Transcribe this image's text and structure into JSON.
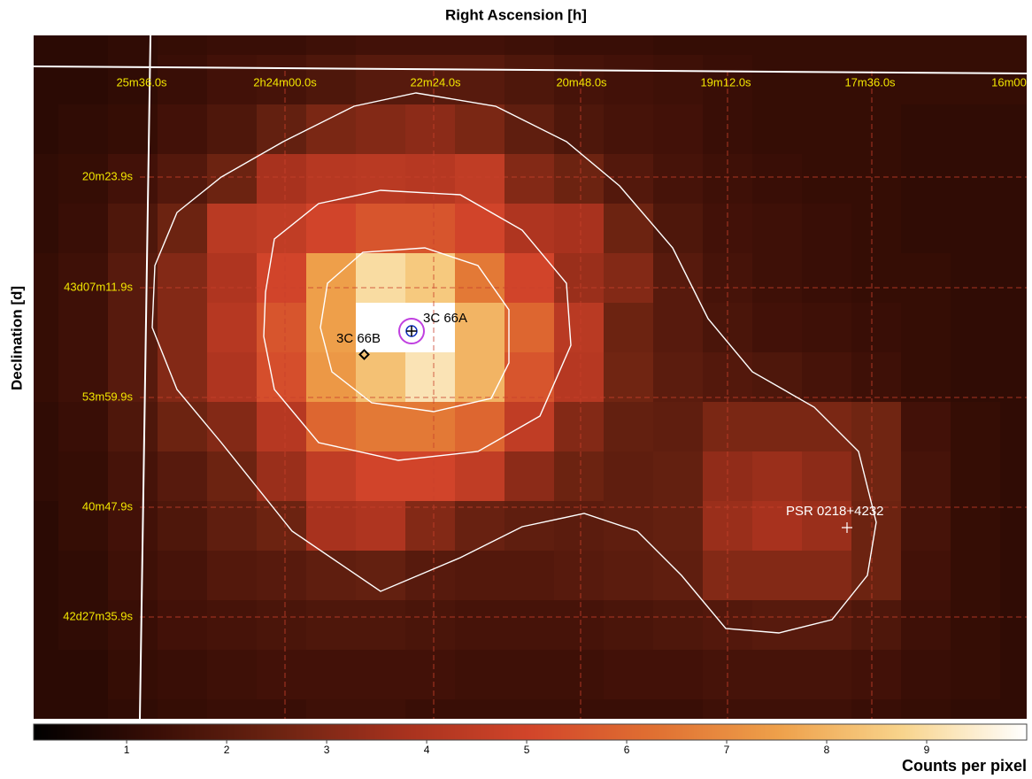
{
  "chart_data": {
    "type": "heatmap",
    "title": "Right Ascension [h]",
    "y_label": "Declination [d]",
    "colorbar_label": "Counts per pixel",
    "ra_labels": [
      "25m36.0s",
      "2h24m00.0s",
      "22m24.0s",
      "20m48.0s",
      "19m12.0s",
      "17m36.0s",
      "16m00"
    ],
    "dec_labels": [
      "20m23.9s",
      "43d07m11.9s",
      "53m59.9s",
      "40m47.9s",
      "42d27m35.9s"
    ],
    "sources": [
      "3C 66A",
      "3C 66B",
      "PSR 0218+4232"
    ],
    "clim": [
      0.07,
      10
    ],
    "cticks": [
      1,
      2,
      3,
      4,
      5,
      6,
      7,
      8,
      9
    ],
    "colormap": [
      "#000000",
      "#3a0e06",
      "#6e2412",
      "#a8321e",
      "#d2452a",
      "#e07032",
      "#eea04a",
      "#f8d48c",
      "#ffffff"
    ],
    "values": [
      [
        1.0,
        1.0,
        1.1,
        1.2,
        1.3,
        1.3,
        1.4,
        1.5,
        1.5,
        1.5,
        1.4,
        1.3,
        1.3,
        1.2,
        1.2,
        1.2,
        1.2,
        1.2,
        1.2,
        1.2,
        1.2
      ],
      [
        1.0,
        1.0,
        1.1,
        1.3,
        1.5,
        1.6,
        1.8,
        2.0,
        2.0,
        2.0,
        1.8,
        1.6,
        1.5,
        1.4,
        1.3,
        1.2,
        1.2,
        1.2,
        1.2,
        1.2,
        1.2
      ],
      [
        1.0,
        1.1,
        1.2,
        1.5,
        1.8,
        2.3,
        2.8,
        3.0,
        3.2,
        2.8,
        2.2,
        1.8,
        1.6,
        1.5,
        1.3,
        1.2,
        1.2,
        1.2,
        1.1,
        1.1,
        1.1
      ],
      [
        1.1,
        1.2,
        1.5,
        1.9,
        2.5,
        3.8,
        4.2,
        4.3,
        4.2,
        4.5,
        3.0,
        2.5,
        1.9,
        1.6,
        1.4,
        1.3,
        1.2,
        1.2,
        1.1,
        1.1,
        1.1
      ],
      [
        1.1,
        1.3,
        1.8,
        2.5,
        4.3,
        4.5,
        5.0,
        5.5,
        5.5,
        5.0,
        4.0,
        3.8,
        2.5,
        1.8,
        1.5,
        1.4,
        1.3,
        1.2,
        1.1,
        1.1,
        1.1
      ],
      [
        1.2,
        1.4,
        2.0,
        3.0,
        4.0,
        5.0,
        7.5,
        9.0,
        8.5,
        6.5,
        5.0,
        3.5,
        3.0,
        2.0,
        1.6,
        1.4,
        1.3,
        1.2,
        1.2,
        1.1,
        1.1
      ],
      [
        1.2,
        1.4,
        2.0,
        3.0,
        4.2,
        5.5,
        7.5,
        10.0,
        10.0,
        8.0,
        6.0,
        4.3,
        2.5,
        2.0,
        1.7,
        1.5,
        1.4,
        1.3,
        1.2,
        1.1,
        1.1
      ],
      [
        1.2,
        1.4,
        2.0,
        3.0,
        4.0,
        5.3,
        7.3,
        8.3,
        9.2,
        8.0,
        5.5,
        4.2,
        2.6,
        2.1,
        1.9,
        1.8,
        1.6,
        1.4,
        1.2,
        1.1,
        1.1
      ],
      [
        1.1,
        1.3,
        1.8,
        2.5,
        3.0,
        4.2,
        6.0,
        6.5,
        6.5,
        6.0,
        4.5,
        3.0,
        2.3,
        2.2,
        2.8,
        2.8,
        2.8,
        2.6,
        1.5,
        1.2,
        1.1
      ],
      [
        1.1,
        1.2,
        1.6,
        2.0,
        2.5,
        3.5,
        4.5,
        5.0,
        5.0,
        4.5,
        3.2,
        2.5,
        2.2,
        2.3,
        3.3,
        3.5,
        3.2,
        2.6,
        1.6,
        1.2,
        1.1
      ],
      [
        1.0,
        1.2,
        1.5,
        1.8,
        2.2,
        2.5,
        3.8,
        4.0,
        3.0,
        2.4,
        2.2,
        2.1,
        2.2,
        2.3,
        3.5,
        3.8,
        3.5,
        2.5,
        1.6,
        1.2,
        1.1
      ],
      [
        1.0,
        1.1,
        1.4,
        1.6,
        1.9,
        2.0,
        2.2,
        2.3,
        2.0,
        1.9,
        1.9,
        2.0,
        2.1,
        2.2,
        3.0,
        3.0,
        3.0,
        2.5,
        1.5,
        1.2,
        1.1
      ],
      [
        1.0,
        1.1,
        1.3,
        1.5,
        1.6,
        1.7,
        1.8,
        1.8,
        1.7,
        1.6,
        1.6,
        1.6,
        1.7,
        1.8,
        1.9,
        2.0,
        2.0,
        1.8,
        1.4,
        1.2,
        1.1
      ],
      [
        1.0,
        1.0,
        1.2,
        1.3,
        1.4,
        1.5,
        1.5,
        1.5,
        1.5,
        1.4,
        1.4,
        1.4,
        1.5,
        1.5,
        1.6,
        1.6,
        1.6,
        1.5,
        1.3,
        1.2,
        1.1
      ],
      [
        1.0,
        1.0,
        1.1,
        1.2,
        1.3,
        1.3,
        1.4,
        1.4,
        1.3,
        1.3,
        1.3,
        1.3,
        1.3,
        1.3,
        1.4,
        1.4,
        1.4,
        1.3,
        1.2,
        1.1,
        1.1
      ]
    ]
  }
}
